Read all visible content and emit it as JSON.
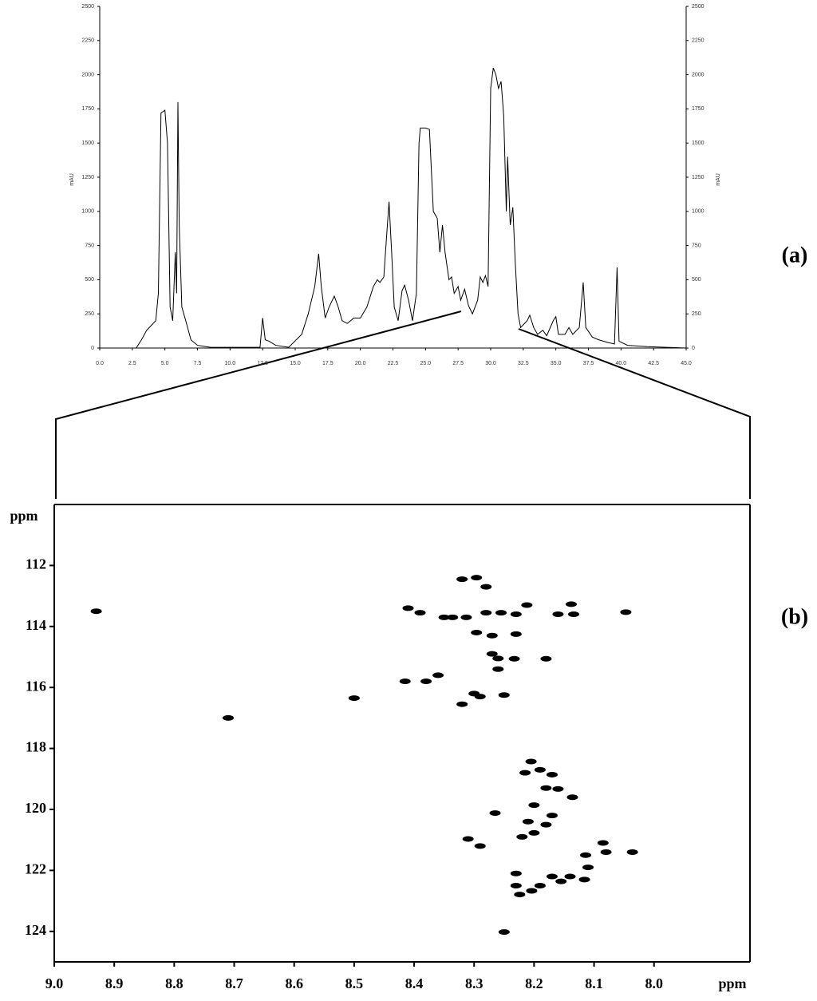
{
  "chart_data": [
    {
      "type": "line",
      "panel_label": "(a)",
      "ylabel": "mAU",
      "y2label": "mAU",
      "color": "#000000",
      "xlim": [
        0,
        45
      ],
      "ylim": [
        0,
        2500
      ],
      "y2lim": [
        0,
        2500
      ],
      "xticks": [
        {
          "value": 0,
          "label": "0.0"
        },
        2.5,
        {
          "value": 5,
          "label": "5.0"
        },
        7.5,
        {
          "value": 10,
          "label": "10.0"
        },
        12.5,
        {
          "value": 15,
          "label": "15.0"
        },
        17.5,
        {
          "value": 20,
          "label": "20.0"
        },
        22.5,
        {
          "value": 25,
          "label": "25.0"
        },
        27.5,
        {
          "value": 30,
          "label": "30.0"
        },
        32.5,
        {
          "value": 35,
          "label": "35.0"
        },
        37.5,
        {
          "value": 40,
          "label": "40.0"
        },
        42.5,
        {
          "value": 45,
          "label": "45.0"
        }
      ],
      "yticks": [
        0,
        250,
        500,
        750,
        1000,
        1250,
        1500,
        1750,
        2000,
        2250,
        2500
      ],
      "y2ticks": [
        0,
        250,
        500,
        750,
        1000,
        1250,
        1500,
        1750,
        2000,
        2250,
        2500
      ],
      "x": [
        0,
        2.8,
        3.2,
        3.6,
        4.0,
        4.3,
        4.5,
        4.7,
        5.0,
        5.2,
        5.4,
        5.6,
        5.8,
        5.9,
        6.0,
        6.1,
        6.3,
        6.6,
        7.0,
        7.5,
        8.5,
        12.3,
        12.5,
        12.7,
        13.0,
        13.5,
        14.5,
        15.5,
        16.0,
        16.5,
        16.8,
        17.0,
        17.3,
        17.6,
        18.0,
        18.3,
        18.6,
        19.0,
        19.5,
        20.0,
        20.5,
        21.0,
        21.3,
        21.5,
        21.8,
        22.0,
        22.2,
        22.4,
        22.6,
        22.9,
        23.2,
        23.4,
        23.7,
        24.0,
        24.3,
        24.5,
        24.6,
        25.0,
        25.3,
        25.5,
        25.6,
        25.9,
        26.1,
        26.3,
        26.5,
        26.8,
        27.0,
        27.2,
        27.5,
        27.7,
        28.0,
        28.3,
        28.6,
        29.0,
        29.2,
        29.4,
        29.6,
        29.8,
        30.0,
        30.2,
        30.4,
        30.6,
        30.8,
        31.0,
        31.2,
        31.3,
        31.5,
        31.7,
        31.9,
        32.1,
        32.3,
        32.5,
        32.8,
        33.0,
        33.3,
        33.6,
        34.0,
        34.3,
        34.8,
        35.0,
        35.2,
        35.7,
        36.0,
        36.3,
        36.8,
        37.1,
        37.3,
        37.8,
        38.3,
        39.0,
        39.5,
        39.7,
        39.85,
        40.5,
        42.0,
        45.0
      ],
      "values": [
        0,
        0,
        60,
        130,
        170,
        200,
        400,
        1720,
        1740,
        1500,
        300,
        200,
        700,
        400,
        1800,
        900,
        300,
        200,
        60,
        20,
        5,
        5,
        220,
        60,
        50,
        20,
        5,
        100,
        250,
        450,
        690,
        450,
        220,
        300,
        380,
        300,
        200,
        180,
        220,
        220,
        300,
        450,
        500,
        480,
        520,
        800,
        1070,
        700,
        300,
        200,
        420,
        460,
        350,
        200,
        400,
        1500,
        1610,
        1610,
        1600,
        1200,
        1000,
        950,
        700,
        900,
        700,
        500,
        520,
        400,
        450,
        350,
        430,
        310,
        250,
        350,
        520,
        480,
        530,
        450,
        1900,
        2050,
        2000,
        1900,
        1950,
        1700,
        1000,
        1400,
        900,
        1030,
        600,
        250,
        150,
        170,
        200,
        240,
        150,
        100,
        130,
        90,
        200,
        230,
        100,
        100,
        150,
        100,
        150,
        480,
        150,
        80,
        60,
        40,
        30,
        590,
        50,
        20,
        10,
        0
      ]
    },
    {
      "type": "scatter",
      "panel_label": "(b)",
      "ylabel": "ppm",
      "xlabel": "ppm",
      "color": "#000000",
      "xlim": [
        9.0,
        7.84
      ],
      "ylim": [
        125,
        110
      ],
      "xticks": [
        {
          "value": 9,
          "label": "9.0"
        },
        8.9,
        8.8,
        8.7,
        8.6,
        8.5,
        8.4,
        8.3,
        8.2,
        8.1,
        {
          "value": 8,
          "label": "8.0"
        }
      ],
      "yticks": [
        112,
        114,
        116,
        118,
        120,
        122,
        124
      ],
      "x": [
        8.93,
        8.71,
        8.5,
        8.41,
        8.39,
        8.415,
        8.38,
        8.36,
        8.35,
        8.336,
        8.32,
        8.313,
        8.296,
        8.296,
        8.28,
        8.28,
        8.27,
        8.27,
        8.255,
        8.23,
        8.23,
        8.212,
        8.26,
        8.26,
        8.233,
        8.18,
        8.3,
        8.29,
        8.25,
        8.32,
        8.16,
        8.138,
        8.134,
        8.047,
        8.205,
        8.215,
        8.19,
        8.17,
        8.18,
        8.16,
        8.136,
        8.2,
        8.21,
        8.18,
        8.17,
        8.265,
        8.29,
        8.31,
        8.2,
        8.22,
        8.114,
        8.085,
        8.08,
        8.036,
        8.11,
        8.116,
        8.14,
        8.17,
        8.19,
        8.204,
        8.23,
        8.23,
        8.224,
        8.25,
        8.155
      ],
      "values": [
        113.5,
        117.0,
        116.35,
        113.4,
        113.55,
        115.8,
        115.8,
        115.6,
        113.7,
        113.7,
        112.45,
        113.7,
        112.4,
        114.2,
        112.7,
        113.55,
        114.3,
        114.9,
        113.55,
        113.6,
        114.25,
        113.3,
        115.05,
        115.4,
        115.06,
        115.06,
        116.2,
        116.3,
        116.25,
        116.55,
        113.6,
        113.27,
        113.6,
        113.53,
        118.43,
        118.8,
        118.7,
        118.86,
        119.3,
        119.33,
        119.6,
        119.86,
        120.4,
        120.5,
        120.2,
        120.12,
        121.2,
        120.97,
        120.77,
        120.9,
        121.5,
        121.1,
        121.4,
        121.4,
        121.9,
        122.3,
        122.2,
        122.2,
        122.5,
        122.67,
        122.5,
        122.1,
        122.79,
        124.02,
        122.36
      ]
    }
  ]
}
